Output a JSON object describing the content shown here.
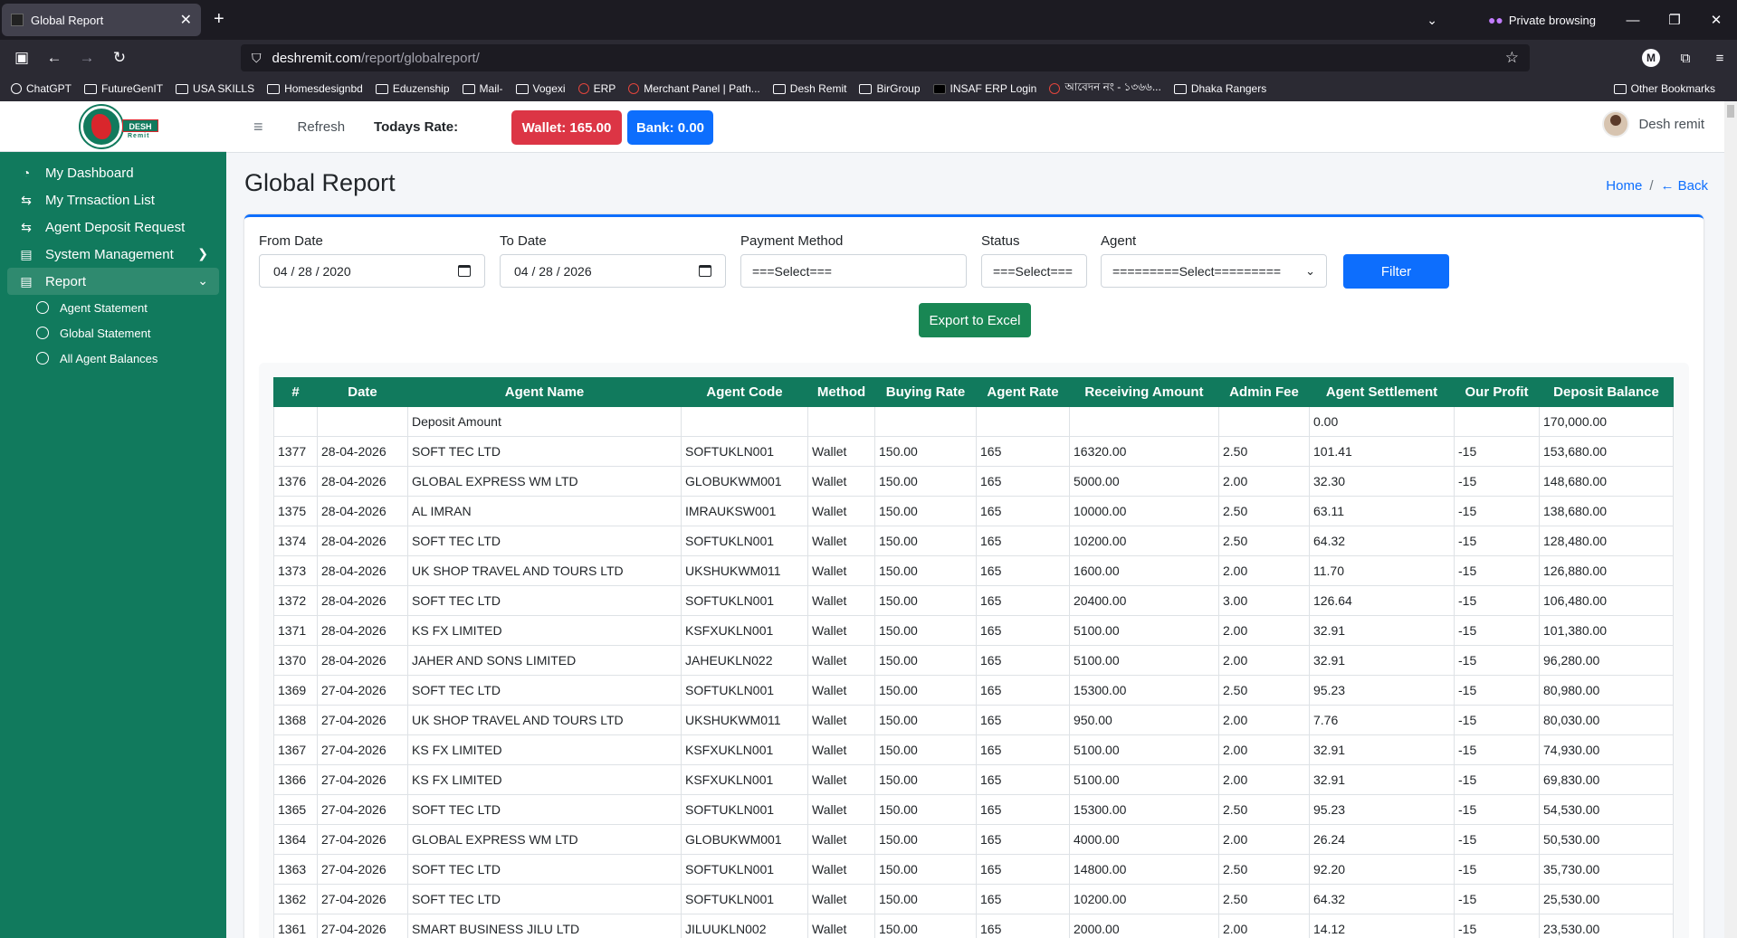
{
  "browser": {
    "tab_title": "Global Report",
    "private_label": "Private browsing",
    "url_host": "deshremit.com",
    "url_path": "/report/globalreport/",
    "bookmarks": [
      {
        "label": "ChatGPT",
        "icon": "chatgpt-icon"
      },
      {
        "label": "FutureGenIT",
        "icon": "folder-icon"
      },
      {
        "label": "USA SKILLS",
        "icon": "folder-icon"
      },
      {
        "label": "Homesdesignbd",
        "icon": "folder-icon"
      },
      {
        "label": "Eduzenship",
        "icon": "folder-icon"
      },
      {
        "label": "Mail-",
        "icon": "folder-icon"
      },
      {
        "label": "Vogexi",
        "icon": "folder-icon"
      },
      {
        "label": "ERP",
        "icon": "erp-icon"
      },
      {
        "label": "Merchant Panel | Path...",
        "icon": "pathao-icon"
      },
      {
        "label": "Desh Remit",
        "icon": "folder-icon"
      },
      {
        "label": "BirGroup",
        "icon": "folder-icon"
      },
      {
        "label": "INSAF ERP Login",
        "icon": "insaf-icon"
      },
      {
        "label": "আবেদন নং - ১৩৬৬...",
        "icon": "bd-gov-icon"
      },
      {
        "label": "Dhaka Rangers",
        "icon": "folder-icon"
      }
    ],
    "other_bookmarks": "Other Bookmarks"
  },
  "sidebar": {
    "logo_word": "DESH",
    "logo_sub": "Remit",
    "items": [
      {
        "label": "My Dashboard",
        "icon": "dashboard-icon"
      },
      {
        "label": "My Trnsaction List",
        "icon": "transfer-icon"
      },
      {
        "label": "Agent Deposit Request",
        "icon": "transfer-icon"
      },
      {
        "label": "System Management",
        "icon": "clipboard-icon"
      },
      {
        "label": "Report",
        "icon": "clipboard-icon"
      }
    ],
    "subitems": [
      "Agent Statement",
      "Global Statement",
      "All Agent Balances"
    ]
  },
  "topbar": {
    "refresh": "Refresh",
    "rate_label": "Todays Rate:",
    "wallet": "Wallet: 165.00",
    "bank": "Bank: 0.00",
    "user": "Desh remit"
  },
  "page": {
    "title": "Global Report",
    "crumb_home": "Home",
    "crumb_sep": "/",
    "crumb_back": "← Back"
  },
  "filters": {
    "from_label": "From Date",
    "from_value": "04 / 28 / 2020",
    "to_label": "To Date",
    "to_value": "04 / 28 / 2026",
    "method_label": "Payment Method",
    "method_value": "===Select===",
    "status_label": "Status",
    "status_value": "===Select===",
    "agent_label": "Agent",
    "agent_value": "=========Select=========",
    "filter_btn": "Filter",
    "export_btn": "Export to Excel"
  },
  "table": {
    "headers": [
      "#",
      "Date",
      "Agent Name",
      "Agent Code",
      "Method",
      "Buying Rate",
      "Agent Rate",
      "Receiving Amount",
      "Admin Fee",
      "Agent Settlement",
      "Our Profit",
      "Deposit Balance"
    ],
    "rows": [
      [
        "",
        "",
        "Deposit Amount",
        "",
        "",
        "",
        "",
        "",
        "",
        "0.00",
        "",
        "170,000.00"
      ],
      [
        "1377",
        "28-04-2026",
        "SOFT TEC LTD",
        "SOFTUKLN001",
        "Wallet",
        "150.00",
        "165",
        "16320.00",
        "2.50",
        "101.41",
        "-15",
        "153,680.00"
      ],
      [
        "1376",
        "28-04-2026",
        "GLOBAL EXPRESS WM LTD",
        "GLOBUKWM001",
        "Wallet",
        "150.00",
        "165",
        "5000.00",
        "2.00",
        "32.30",
        "-15",
        "148,680.00"
      ],
      [
        "1375",
        "28-04-2026",
        "AL IMRAN",
        "IMRAUKSW001",
        "Wallet",
        "150.00",
        "165",
        "10000.00",
        "2.50",
        "63.11",
        "-15",
        "138,680.00"
      ],
      [
        "1374",
        "28-04-2026",
        "SOFT TEC LTD",
        "SOFTUKLN001",
        "Wallet",
        "150.00",
        "165",
        "10200.00",
        "2.50",
        "64.32",
        "-15",
        "128,480.00"
      ],
      [
        "1373",
        "28-04-2026",
        "UK SHOP TRAVEL AND TOURS LTD",
        "UKSHUKWM011",
        "Wallet",
        "150.00",
        "165",
        "1600.00",
        "2.00",
        "11.70",
        "-15",
        "126,880.00"
      ],
      [
        "1372",
        "28-04-2026",
        "SOFT TEC LTD",
        "SOFTUKLN001",
        "Wallet",
        "150.00",
        "165",
        "20400.00",
        "3.00",
        "126.64",
        "-15",
        "106,480.00"
      ],
      [
        "1371",
        "28-04-2026",
        "KS FX LIMITED",
        "KSFXUKLN001",
        "Wallet",
        "150.00",
        "165",
        "5100.00",
        "2.00",
        "32.91",
        "-15",
        "101,380.00"
      ],
      [
        "1370",
        "28-04-2026",
        "JAHER AND SONS LIMITED",
        "JAHEUKLN022",
        "Wallet",
        "150.00",
        "165",
        "5100.00",
        "2.00",
        "32.91",
        "-15",
        "96,280.00"
      ],
      [
        "1369",
        "27-04-2026",
        "SOFT TEC LTD",
        "SOFTUKLN001",
        "Wallet",
        "150.00",
        "165",
        "15300.00",
        "2.50",
        "95.23",
        "-15",
        "80,980.00"
      ],
      [
        "1368",
        "27-04-2026",
        "UK SHOP TRAVEL AND TOURS LTD",
        "UKSHUKWM011",
        "Wallet",
        "150.00",
        "165",
        "950.00",
        "2.00",
        "7.76",
        "-15",
        "80,030.00"
      ],
      [
        "1367",
        "27-04-2026",
        "KS FX LIMITED",
        "KSFXUKLN001",
        "Wallet",
        "150.00",
        "165",
        "5100.00",
        "2.00",
        "32.91",
        "-15",
        "74,930.00"
      ],
      [
        "1366",
        "27-04-2026",
        "KS FX LIMITED",
        "KSFXUKLN001",
        "Wallet",
        "150.00",
        "165",
        "5100.00",
        "2.00",
        "32.91",
        "-15",
        "69,830.00"
      ],
      [
        "1365",
        "27-04-2026",
        "SOFT TEC LTD",
        "SOFTUKLN001",
        "Wallet",
        "150.00",
        "165",
        "15300.00",
        "2.50",
        "95.23",
        "-15",
        "54,530.00"
      ],
      [
        "1364",
        "27-04-2026",
        "GLOBAL EXPRESS WM LTD",
        "GLOBUKWM001",
        "Wallet",
        "150.00",
        "165",
        "4000.00",
        "2.00",
        "26.24",
        "-15",
        "50,530.00"
      ],
      [
        "1363",
        "27-04-2026",
        "SOFT TEC LTD",
        "SOFTUKLN001",
        "Wallet",
        "150.00",
        "165",
        "14800.00",
        "2.50",
        "92.20",
        "-15",
        "35,730.00"
      ],
      [
        "1362",
        "27-04-2026",
        "SOFT TEC LTD",
        "SOFTUKLN001",
        "Wallet",
        "150.00",
        "165",
        "10200.00",
        "2.50",
        "64.32",
        "-15",
        "25,530.00"
      ],
      [
        "1361",
        "27-04-2026",
        "SMART BUSINESS JILU LTD",
        "JILUUKLN002",
        "Wallet",
        "150.00",
        "165",
        "2000.00",
        "2.00",
        "14.12",
        "-15",
        "23,530.00"
      ]
    ]
  }
}
